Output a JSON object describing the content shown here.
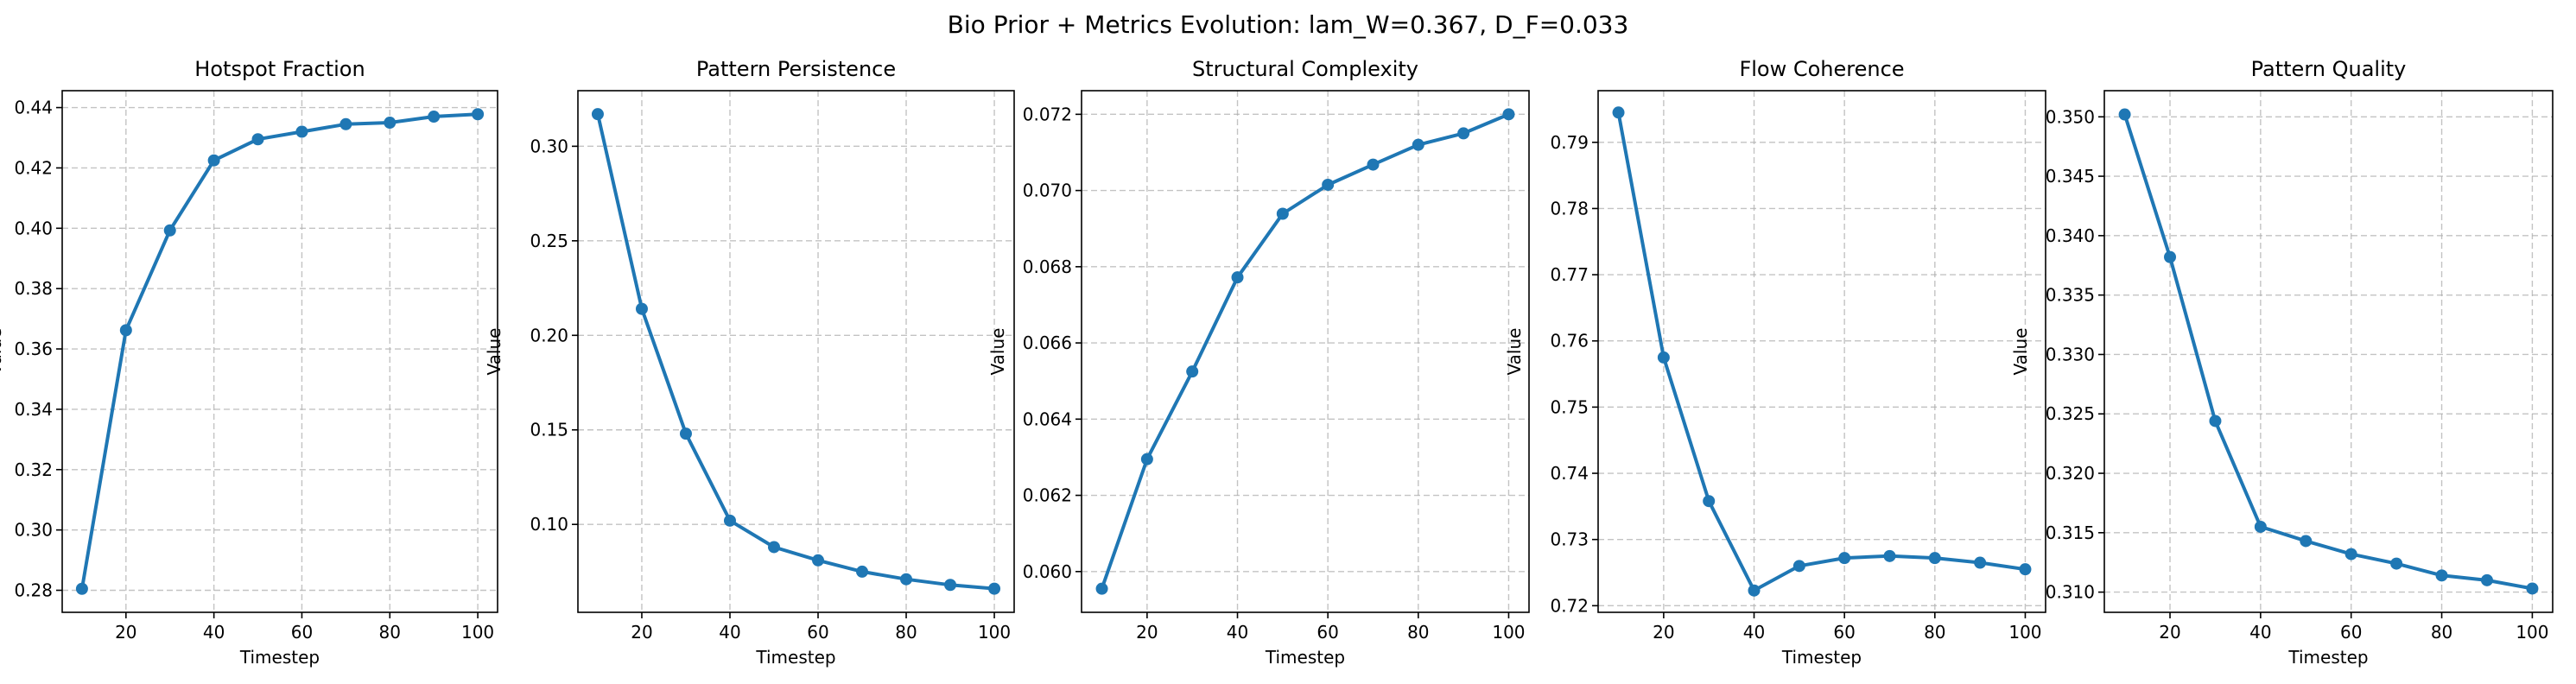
{
  "figure": {
    "suptitle": "Bio Prior + Metrics Evolution: lam_W=0.367, D_F=0.033"
  },
  "colors": {
    "series": "#1f77b4",
    "grid": "#b0b0b0",
    "axes": "#000000"
  },
  "chart_data": [
    {
      "type": "line",
      "title": "Hotspot Fraction",
      "xlabel": "Timestep",
      "ylabel": "Value",
      "x": [
        10,
        20,
        30,
        40,
        50,
        60,
        70,
        80,
        90,
        100
      ],
      "values": [
        0.2805,
        0.3662,
        0.3993,
        0.4225,
        0.4295,
        0.432,
        0.4345,
        0.435,
        0.437,
        0.4378
      ],
      "xlim": [
        5.5,
        104.5
      ],
      "ylim": [
        0.2727,
        0.4456
      ],
      "xticks": [
        20,
        40,
        60,
        80,
        100
      ],
      "xtick_labels": [
        "20",
        "40",
        "60",
        "80",
        "100"
      ],
      "yticks": [
        0.28,
        0.3,
        0.32,
        0.34,
        0.36,
        0.38,
        0.4,
        0.42,
        0.44
      ],
      "ytick_labels": [
        "0.28",
        "0.30",
        "0.32",
        "0.34",
        "0.36",
        "0.38",
        "0.40",
        "0.42",
        "0.44"
      ],
      "grid": true
    },
    {
      "type": "line",
      "title": "Pattern Persistence",
      "xlabel": "Timestep",
      "ylabel": "Value",
      "x": [
        10,
        20,
        30,
        40,
        50,
        60,
        70,
        80,
        90,
        100
      ],
      "values": [
        0.317,
        0.214,
        0.148,
        0.102,
        0.088,
        0.081,
        0.075,
        0.071,
        0.068,
        0.066
      ],
      "xlim": [
        5.5,
        104.5
      ],
      "ylim": [
        0.0535,
        0.3294
      ],
      "xticks": [
        20,
        40,
        60,
        80,
        100
      ],
      "xtick_labels": [
        "20",
        "40",
        "60",
        "80",
        "100"
      ],
      "yticks": [
        0.1,
        0.15,
        0.2,
        0.25,
        0.3
      ],
      "ytick_labels": [
        "0.10",
        "0.15",
        "0.20",
        "0.25",
        "0.30"
      ],
      "grid": true
    },
    {
      "type": "line",
      "title": "Structural Complexity",
      "xlabel": "Timestep",
      "ylabel": "Value",
      "x": [
        10,
        20,
        30,
        40,
        50,
        60,
        70,
        80,
        90,
        100
      ],
      "values": [
        0.05955,
        0.06295,
        0.06525,
        0.06772,
        0.06939,
        0.07015,
        0.07068,
        0.0712,
        0.0715,
        0.072
      ],
      "xlim": [
        5.5,
        104.5
      ],
      "ylim": [
        0.05893,
        0.07262
      ],
      "xticks": [
        20,
        40,
        60,
        80,
        100
      ],
      "xtick_labels": [
        "20",
        "40",
        "60",
        "80",
        "100"
      ],
      "yticks": [
        0.06,
        0.062,
        0.064,
        0.066,
        0.068,
        0.07,
        0.072
      ],
      "ytick_labels": [
        "0.060",
        "0.062",
        "0.064",
        "0.066",
        "0.068",
        "0.070",
        "0.072"
      ],
      "grid": true
    },
    {
      "type": "line",
      "title": "Flow Coherence",
      "xlabel": "Timestep",
      "ylabel": "Value",
      "x": [
        10,
        20,
        30,
        40,
        50,
        60,
        70,
        80,
        90,
        100
      ],
      "values": [
        0.7945,
        0.7575,
        0.7358,
        0.7223,
        0.726,
        0.7272,
        0.7275,
        0.7272,
        0.7265,
        0.7255
      ],
      "xlim": [
        5.5,
        104.5
      ],
      "ylim": [
        0.719,
        0.7978
      ],
      "xticks": [
        20,
        40,
        60,
        80,
        100
      ],
      "xtick_labels": [
        "20",
        "40",
        "60",
        "80",
        "100"
      ],
      "yticks": [
        0.72,
        0.73,
        0.74,
        0.75,
        0.76,
        0.77,
        0.78,
        0.79
      ],
      "ytick_labels": [
        "0.72",
        "0.73",
        "0.74",
        "0.75",
        "0.76",
        "0.77",
        "0.78",
        "0.79"
      ],
      "grid": true
    },
    {
      "type": "line",
      "title": "Pattern Quality",
      "xlabel": "Timestep",
      "ylabel": "Value",
      "x": [
        10,
        20,
        30,
        40,
        50,
        60,
        70,
        80,
        90,
        100
      ],
      "values": [
        0.3502,
        0.3382,
        0.3244,
        0.3155,
        0.3143,
        0.3132,
        0.3124,
        0.3114,
        0.311,
        0.3103
      ],
      "xlim": [
        5.5,
        104.5
      ],
      "ylim": [
        0.3083,
        0.3522
      ],
      "xticks": [
        20,
        40,
        60,
        80,
        100
      ],
      "xtick_labels": [
        "20",
        "40",
        "60",
        "80",
        "100"
      ],
      "yticks": [
        0.31,
        0.315,
        0.32,
        0.325,
        0.33,
        0.335,
        0.34,
        0.345,
        0.35
      ],
      "ytick_labels": [
        "0.310",
        "0.315",
        "0.320",
        "0.325",
        "0.330",
        "0.335",
        "0.340",
        "0.345",
        "0.350"
      ],
      "grid": true
    }
  ]
}
